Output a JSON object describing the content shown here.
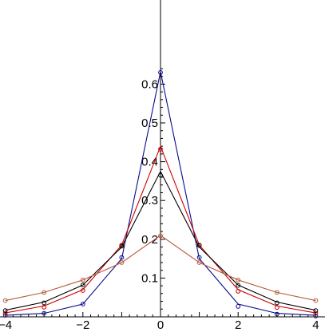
{
  "chart_data": {
    "type": "line",
    "title": "",
    "xlabel": "",
    "ylabel": "",
    "xlim": [
      -4,
      4
    ],
    "ylim": [
      0,
      0.65
    ],
    "grid": false,
    "legend": "none",
    "x_ticks": [
      -4,
      -2,
      0,
      2,
      4
    ],
    "x_tick_labels": [
      "−4",
      "−2",
      "0",
      "2",
      "4"
    ],
    "y_ticks": [
      0.1,
      0.2,
      0.3,
      0.4,
      0.5,
      0.6
    ],
    "y_tick_labels": [
      "0.1",
      "0.2",
      "0.3",
      "0.4",
      "0.5",
      "0.6"
    ],
    "series": [
      {
        "color": "#0a0a8c",
        "marker": "circle",
        "line": [
          [
            -4,
            0.004
          ],
          [
            -3,
            0.009
          ],
          [
            -2,
            0.033
          ],
          [
            -1,
            0.15
          ],
          [
            0,
            0.632
          ],
          [
            1,
            0.15
          ],
          [
            2,
            0.033
          ],
          [
            3,
            0.009
          ],
          [
            4,
            0.004
          ]
        ],
        "points": [
          [
            -4,
            0.004
          ],
          [
            -3,
            0.009
          ],
          [
            -2,
            0.033
          ],
          [
            -1,
            0.153
          ],
          [
            0,
            0.63
          ],
          [
            1,
            0.153
          ],
          [
            2,
            0.027
          ],
          [
            3,
            0.007
          ],
          [
            4,
            0.002
          ]
        ]
      },
      {
        "color": "#cc0000",
        "marker": "circle",
        "line": [
          [
            -4,
            0.01
          ],
          [
            -3,
            0.028
          ],
          [
            -2,
            0.07
          ],
          [
            -1,
            0.185
          ],
          [
            0,
            0.44
          ],
          [
            1,
            0.185
          ],
          [
            2,
            0.07
          ],
          [
            3,
            0.028
          ],
          [
            4,
            0.01
          ]
        ],
        "points": [
          [
            -4,
            0.009
          ],
          [
            -3,
            0.025
          ],
          [
            -2,
            0.068
          ],
          [
            -1,
            0.185
          ],
          [
            0,
            0.432
          ],
          [
            1,
            0.185
          ],
          [
            2,
            0.066
          ],
          [
            3,
            0.024
          ],
          [
            4,
            0.009
          ]
        ]
      },
      {
        "color": "#000000",
        "marker": "circle",
        "line": [
          [
            -4,
            0.017
          ],
          [
            -3,
            0.038
          ],
          [
            -2,
            0.082
          ],
          [
            -1,
            0.18
          ],
          [
            0,
            0.375
          ],
          [
            1,
            0.18
          ],
          [
            2,
            0.082
          ],
          [
            3,
            0.038
          ],
          [
            4,
            0.017
          ]
        ],
        "points": [
          [
            -4,
            0.016
          ],
          [
            -3,
            0.036
          ],
          [
            -2,
            0.082
          ],
          [
            -1,
            0.182
          ],
          [
            0,
            0.365
          ],
          [
            1,
            0.184
          ],
          [
            2,
            0.081
          ],
          [
            3,
            0.036
          ],
          [
            4,
            0.016
          ]
        ]
      },
      {
        "color": "#b85a3c",
        "marker": "circle",
        "line": [
          [
            -4,
            0.042
          ],
          [
            -3,
            0.063
          ],
          [
            -2,
            0.095
          ],
          [
            -1,
            0.14
          ],
          [
            0,
            0.21
          ],
          [
            1,
            0.14
          ],
          [
            2,
            0.095
          ],
          [
            3,
            0.063
          ],
          [
            4,
            0.042
          ]
        ],
        "points": [
          [
            -4,
            0.042
          ],
          [
            -3,
            0.063
          ],
          [
            -2,
            0.095
          ],
          [
            -1,
            0.14
          ],
          [
            0,
            0.209
          ],
          [
            1,
            0.14
          ],
          [
            2,
            0.095
          ],
          [
            3,
            0.063
          ],
          [
            4,
            0.042
          ]
        ]
      }
    ]
  }
}
